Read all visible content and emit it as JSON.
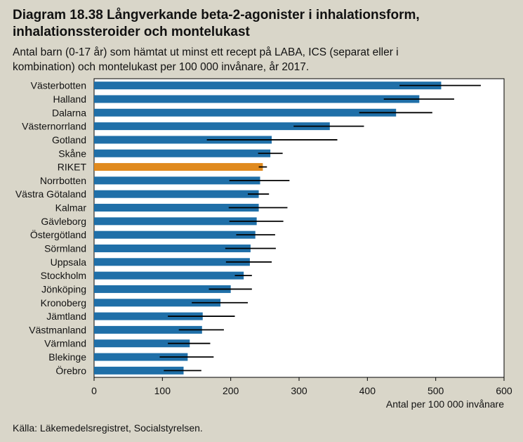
{
  "header": {
    "title_line1": "Diagram 18.38 Långverkande beta-2-agonister i inhalationsform,",
    "title_line2": "inhalationssteroider och montelukast",
    "subtitle_line1": "Antal barn (0-17 år) som hämtat ut minst ett recept på LABA, ICS (separat eller i",
    "subtitle_line2": "kombination) och montelukast per 100 000 invånare, år 2017."
  },
  "footer": {
    "source": "Källa: Läkemedelsregistret, Socialstyrelsen."
  },
  "colors": {
    "bar": "#1f6fa8",
    "highlight": "#e08a1e",
    "errorbar": "#000000",
    "plot_bg": "#ffffff",
    "page_bg": "#d9d6c9"
  },
  "chart_data": {
    "type": "bar",
    "orientation": "horizontal",
    "xlabel": "Antal per 100 000 invånare",
    "xlim": [
      0,
      600
    ],
    "xticks": [
      0,
      100,
      200,
      300,
      400,
      500,
      600
    ],
    "grid": false,
    "highlight_category": "RIKET",
    "categories": [
      "Västerbotten",
      "Halland",
      "Dalarna",
      "Västernorrland",
      "Gotland",
      "Skåne",
      "RIKET",
      "Norrbotten",
      "Västra Götaland",
      "Kalmar",
      "Gävleborg",
      "Östergötland",
      "Sörmland",
      "Uppsala",
      "Stockholm",
      "Jönköping",
      "Kronoberg",
      "Jämtland",
      "Västmanland",
      "Värmland",
      "Blekinge",
      "Örebro"
    ],
    "values": [
      508,
      476,
      442,
      345,
      260,
      258,
      247,
      243,
      241,
      241,
      238,
      236,
      229,
      228,
      219,
      200,
      185,
      159,
      158,
      140,
      137,
      131
    ],
    "ci_low": [
      447,
      424,
      388,
      292,
      165,
      240,
      241,
      198,
      225,
      197,
      198,
      208,
      192,
      193,
      206,
      168,
      143,
      108,
      124,
      108,
      96,
      102
    ],
    "ci_high": [
      566,
      527,
      495,
      395,
      356,
      276,
      253,
      286,
      256,
      283,
      277,
      265,
      266,
      260,
      231,
      231,
      225,
      206,
      190,
      170,
      175,
      157
    ]
  }
}
